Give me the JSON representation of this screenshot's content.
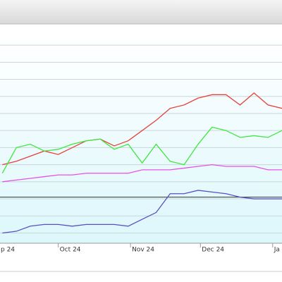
{
  "chart_data": {
    "type": "line",
    "x": [
      -24,
      -18,
      -12,
      -6,
      0,
      6,
      12,
      18,
      24,
      30,
      36,
      42,
      48,
      54,
      60,
      66,
      72,
      78,
      84,
      90,
      96
    ],
    "xlim": [
      -25,
      96
    ],
    "xticks": [
      {
        "value": -30,
        "label": "p 24"
      },
      {
        "value": 0,
        "label": "Oct 24"
      },
      {
        "value": 31,
        "label": "Nov 24"
      },
      {
        "value": 61,
        "label": "Dec 24"
      },
      {
        "value": 92,
        "label": "Ja"
      }
    ],
    "ylim": [
      -0.6,
      11.5
    ],
    "yticks": [
      0,
      1,
      2,
      3,
      4,
      5,
      6,
      7,
      8,
      9,
      10,
      11
    ],
    "grid": true,
    "reference_line": 2.1,
    "series": [
      {
        "color": "#e8413c",
        "values": [
          4.0,
          4.2,
          4.5,
          4.8,
          4.6,
          5.0,
          5.4,
          5.5,
          5.1,
          5.4,
          6.0,
          6.6,
          7.3,
          7.5,
          7.9,
          8.1,
          8.1,
          7.5,
          8.2,
          7.5,
          7.3
        ]
      },
      {
        "color": "#3ee83e",
        "values": [
          3.5,
          5.0,
          5.2,
          4.8,
          4.9,
          5.2,
          5.4,
          5.5,
          4.9,
          5.2,
          4.1,
          5.2,
          4.2,
          4.0,
          5.2,
          6.2,
          6.0,
          5.6,
          5.7,
          5.6,
          6.0
        ]
      },
      {
        "color": "#e552e5",
        "values": [
          3.0,
          3.1,
          3.2,
          3.3,
          3.4,
          3.4,
          3.5,
          3.5,
          3.5,
          3.5,
          3.7,
          3.7,
          3.7,
          3.8,
          3.9,
          4.0,
          3.9,
          3.9,
          3.9,
          3.7,
          3.7
        ]
      },
      {
        "color": "#5a4fc4",
        "values": [
          0.0,
          0.1,
          0.4,
          0.5,
          0.5,
          0.4,
          0.5,
          0.5,
          0.5,
          0.4,
          0.8,
          1.2,
          2.3,
          2.3,
          2.5,
          2.4,
          2.3,
          2.1,
          2.0,
          2.0,
          2.0
        ]
      }
    ]
  }
}
